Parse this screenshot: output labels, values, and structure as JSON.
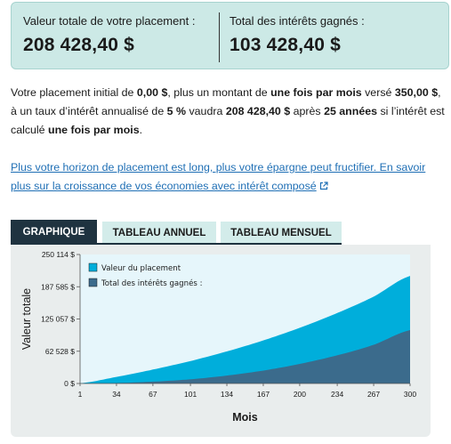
{
  "summary": {
    "total_label": "Valeur totale de votre placement :",
    "total_value": "208 428,40 $",
    "interest_label": "Total des intérêts gagnés :",
    "interest_value": "103 428,40 $"
  },
  "description": {
    "p1": "Votre placement initial de ",
    "initial": "0,00 $",
    "p2": ", plus un montant de ",
    "frequency": "une fois par mois",
    "p3": " versé ",
    "amount": "350,00 $",
    "p4": ", à un taux d’intérêt annualisé de ",
    "rate": "5 %",
    "p5": " vaudra ",
    "final": "208 428,40 $",
    "p6": " après ",
    "years": "25 années",
    "p7": " si l’intérêt est calculé ",
    "compounding": "une fois par mois",
    "p8": "."
  },
  "link": {
    "text": "Plus votre horizon de placement est long, plus votre épargne peut fructifier. En savoir plus sur la croissance de vos économies avec intérêt composé",
    "icon": "external-link-icon"
  },
  "tabs": [
    {
      "label": "GRAPHIQUE",
      "active": true
    },
    {
      "label": "TABLEAU ANNUEL",
      "active": false
    },
    {
      "label": "TABLEAU MENSUEL",
      "active": false
    }
  ],
  "colors": {
    "investment": "#00aedb",
    "interest": "#3b6b8c",
    "plot_bg": "#e6f6fb",
    "panel_bg": "#e9eded",
    "summary_bg": "#cce9e6",
    "tab_active": "#1f3340",
    "tab_inactive": "#d3ecea",
    "link": "#1f6fb5"
  },
  "chart_data": {
    "type": "area",
    "xlabel": "Mois",
    "ylabel": "Valeur totale",
    "x_ticks": [
      1,
      34,
      67,
      101,
      134,
      167,
      200,
      234,
      267,
      300
    ],
    "y_ticks": [
      0,
      62528,
      125057,
      187585,
      250114
    ],
    "y_tick_labels": [
      "0 $",
      "62 528 $",
      "125 057 $",
      "187 585 $",
      "250 114 $"
    ],
    "xlim": [
      1,
      300
    ],
    "ylim": [
      0,
      250114
    ],
    "legend_position": "top-left",
    "series": [
      {
        "name": "Valeur du placement",
        "color": "#00aedb",
        "x": [
          1,
          34,
          67,
          101,
          134,
          167,
          200,
          234,
          267,
          300
        ],
        "values": [
          350,
          12775,
          27000,
          43500,
          62200,
          83500,
          108000,
          136500,
          168500,
          208428
        ]
      },
      {
        "name": "Total des intérêts gagnés :",
        "color": "#3b6b8c",
        "x": [
          1,
          34,
          67,
          101,
          134,
          167,
          200,
          234,
          267,
          300
        ],
        "values": [
          0,
          875,
          3550,
          8150,
          15300,
          25050,
          38000,
          54600,
          75050,
          103428
        ]
      }
    ]
  }
}
